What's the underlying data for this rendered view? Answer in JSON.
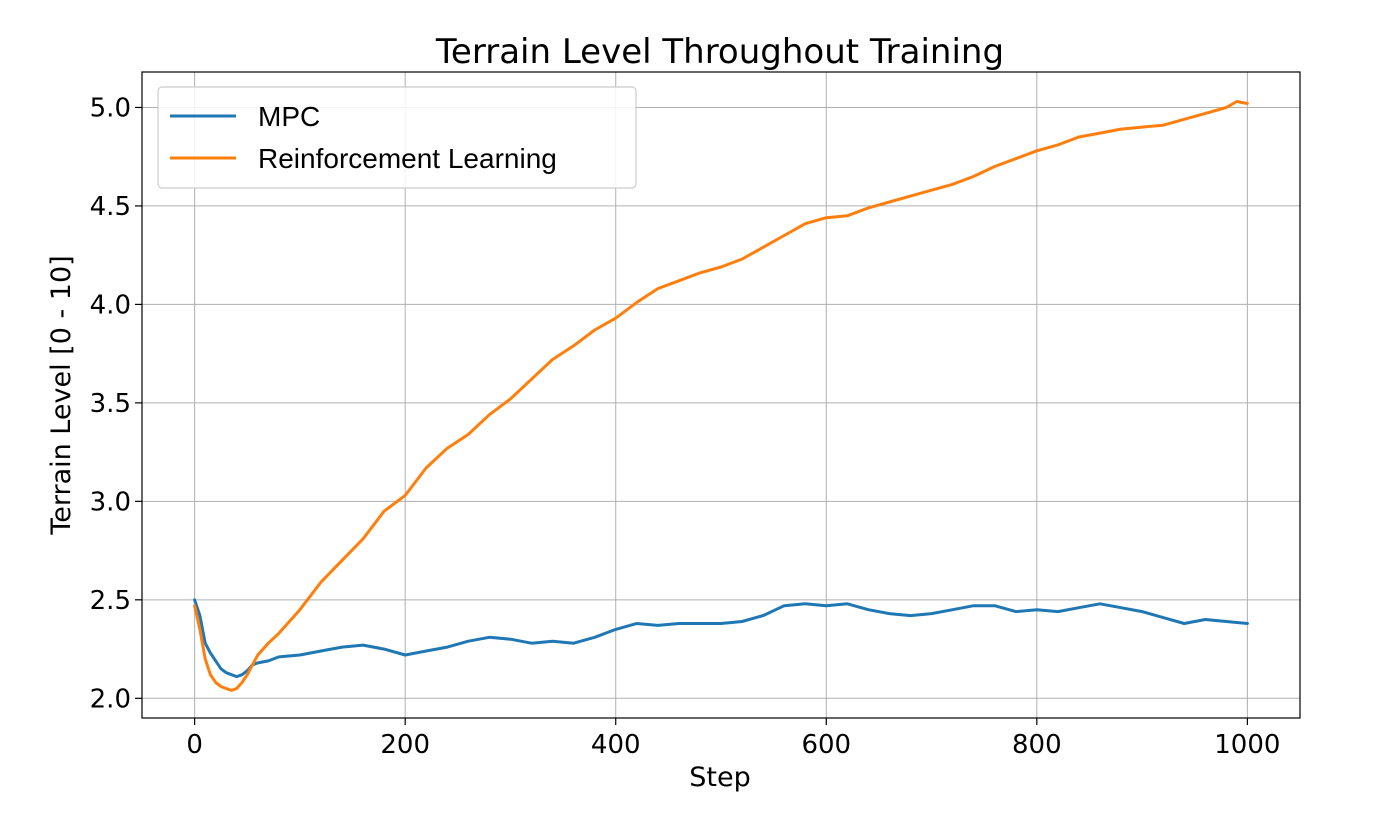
{
  "chart_data": {
    "type": "line",
    "title": "Terrain Level Throughout Training",
    "xlabel": "Step",
    "ylabel": "Terrain Level [0 - 10]",
    "xlim": [
      -50,
      1050
    ],
    "ylim": [
      1.9,
      5.18
    ],
    "xticks": [
      0,
      200,
      400,
      600,
      800,
      1000
    ],
    "yticks": [
      2.0,
      2.5,
      3.0,
      3.5,
      4.0,
      4.5,
      5.0
    ],
    "xtick_labels": [
      "0",
      "200",
      "400",
      "600",
      "800",
      "1000"
    ],
    "ytick_labels": [
      "2.0",
      "2.5",
      "3.0",
      "3.5",
      "4.0",
      "4.5",
      "5.0"
    ],
    "grid": true,
    "legend_position": "upper-left",
    "series": [
      {
        "name": "MPC",
        "color": "#1f77b4",
        "x": [
          0,
          5,
          10,
          15,
          20,
          25,
          30,
          35,
          40,
          45,
          50,
          55,
          60,
          70,
          80,
          100,
          120,
          140,
          160,
          180,
          200,
          220,
          240,
          260,
          280,
          300,
          320,
          340,
          360,
          380,
          400,
          420,
          440,
          460,
          480,
          500,
          520,
          540,
          560,
          580,
          600,
          620,
          640,
          660,
          680,
          700,
          720,
          740,
          760,
          780,
          800,
          820,
          840,
          860,
          880,
          900,
          920,
          940,
          960,
          980,
          1000
        ],
        "y": [
          2.5,
          2.42,
          2.28,
          2.23,
          2.19,
          2.15,
          2.13,
          2.12,
          2.11,
          2.12,
          2.14,
          2.17,
          2.18,
          2.19,
          2.21,
          2.22,
          2.24,
          2.26,
          2.27,
          2.25,
          2.22,
          2.24,
          2.26,
          2.29,
          2.31,
          2.3,
          2.28,
          2.29,
          2.28,
          2.31,
          2.35,
          2.38,
          2.37,
          2.38,
          2.38,
          2.38,
          2.39,
          2.42,
          2.47,
          2.48,
          2.47,
          2.48,
          2.45,
          2.43,
          2.42,
          2.43,
          2.45,
          2.47,
          2.47,
          2.44,
          2.45,
          2.44,
          2.46,
          2.48,
          2.46,
          2.44,
          2.41,
          2.38,
          2.4,
          2.39,
          2.38
        ]
      },
      {
        "name": "Reinforcement Learning",
        "color": "#ff7f0e",
        "x": [
          0,
          5,
          10,
          15,
          20,
          25,
          30,
          35,
          40,
          45,
          50,
          55,
          60,
          70,
          80,
          90,
          100,
          120,
          140,
          160,
          180,
          200,
          220,
          240,
          260,
          280,
          300,
          320,
          340,
          360,
          380,
          400,
          420,
          440,
          460,
          480,
          500,
          520,
          540,
          560,
          580,
          600,
          620,
          640,
          660,
          680,
          700,
          720,
          740,
          760,
          780,
          800,
          820,
          840,
          860,
          880,
          900,
          920,
          940,
          960,
          980,
          990,
          1000
        ],
        "y": [
          2.47,
          2.35,
          2.2,
          2.12,
          2.08,
          2.06,
          2.05,
          2.04,
          2.05,
          2.08,
          2.12,
          2.17,
          2.22,
          2.28,
          2.33,
          2.39,
          2.45,
          2.59,
          2.7,
          2.81,
          2.95,
          3.03,
          3.17,
          3.27,
          3.34,
          3.44,
          3.52,
          3.62,
          3.72,
          3.79,
          3.87,
          3.93,
          4.01,
          4.08,
          4.12,
          4.16,
          4.19,
          4.23,
          4.29,
          4.35,
          4.41,
          4.44,
          4.45,
          4.49,
          4.52,
          4.55,
          4.58,
          4.61,
          4.65,
          4.7,
          4.74,
          4.78,
          4.81,
          4.85,
          4.87,
          4.89,
          4.9,
          4.91,
          4.94,
          4.97,
          5.0,
          5.03,
          5.02
        ]
      }
    ]
  }
}
